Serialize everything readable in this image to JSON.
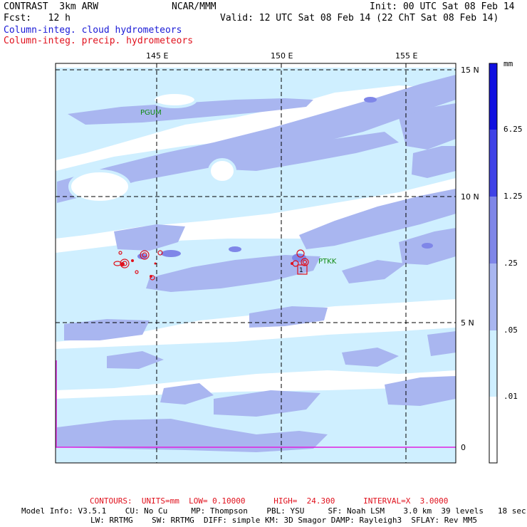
{
  "header": {
    "model": "CONTRAST  3km ARW",
    "org": "NCAR/MMM",
    "init": "Init: 00 UTC Sat 08 Feb 14",
    "fcst": "Fcst:   12 h",
    "valid": "Valid: 12 UTC Sat 08 Feb 14 (22 ChT Sat 08 Feb 14)",
    "field1": "Column-integ. cloud hydrometeors",
    "field2": "Column-integ. precip. hydrometeors",
    "field1_color": "#1a1ad6",
    "field2_color": "#e0101c"
  },
  "map": {
    "lon_labels": [
      "145 E",
      "150 E",
      "155 E"
    ],
    "lat_labels": [
      "15 N",
      "10 N",
      "5 N",
      "0"
    ],
    "stations": [
      "PGUM",
      "PTKK"
    ],
    "station_color": "#108a10",
    "contour_label": "1",
    "shading_colors": {
      "light": "#cfefff",
      "medium": "#a9b6f0",
      "dark": "#7f86e8"
    }
  },
  "legend": {
    "unit": "mm",
    "levels": [
      "6.25",
      "1.25",
      ".25",
      ".05",
      ".01"
    ],
    "colors": [
      "#1010e0",
      "#3f42e6",
      "#7f86e8",
      "#a9b6f0",
      "#cfefff",
      "#ffffff"
    ]
  },
  "footer": {
    "contours_label": "CONTOURS:  UNITS=mm  LOW= 0.10000      HIGH=  24.300      INTERVAL=X  3.0000",
    "contours_color": "#e0101c",
    "model_info_1": "Model Info: V3.5.1    CU: No Cu     MP: Thompson    PBL: YSU     SF: Noah LSM    3.0 km  39 levels   18 sec",
    "model_info_2": "LW: RRTMG    SW: RRTMG  DIFF: simple KM: 3D Smagor DAMP: Rayleigh3  SFLAY: Rev MM5"
  }
}
